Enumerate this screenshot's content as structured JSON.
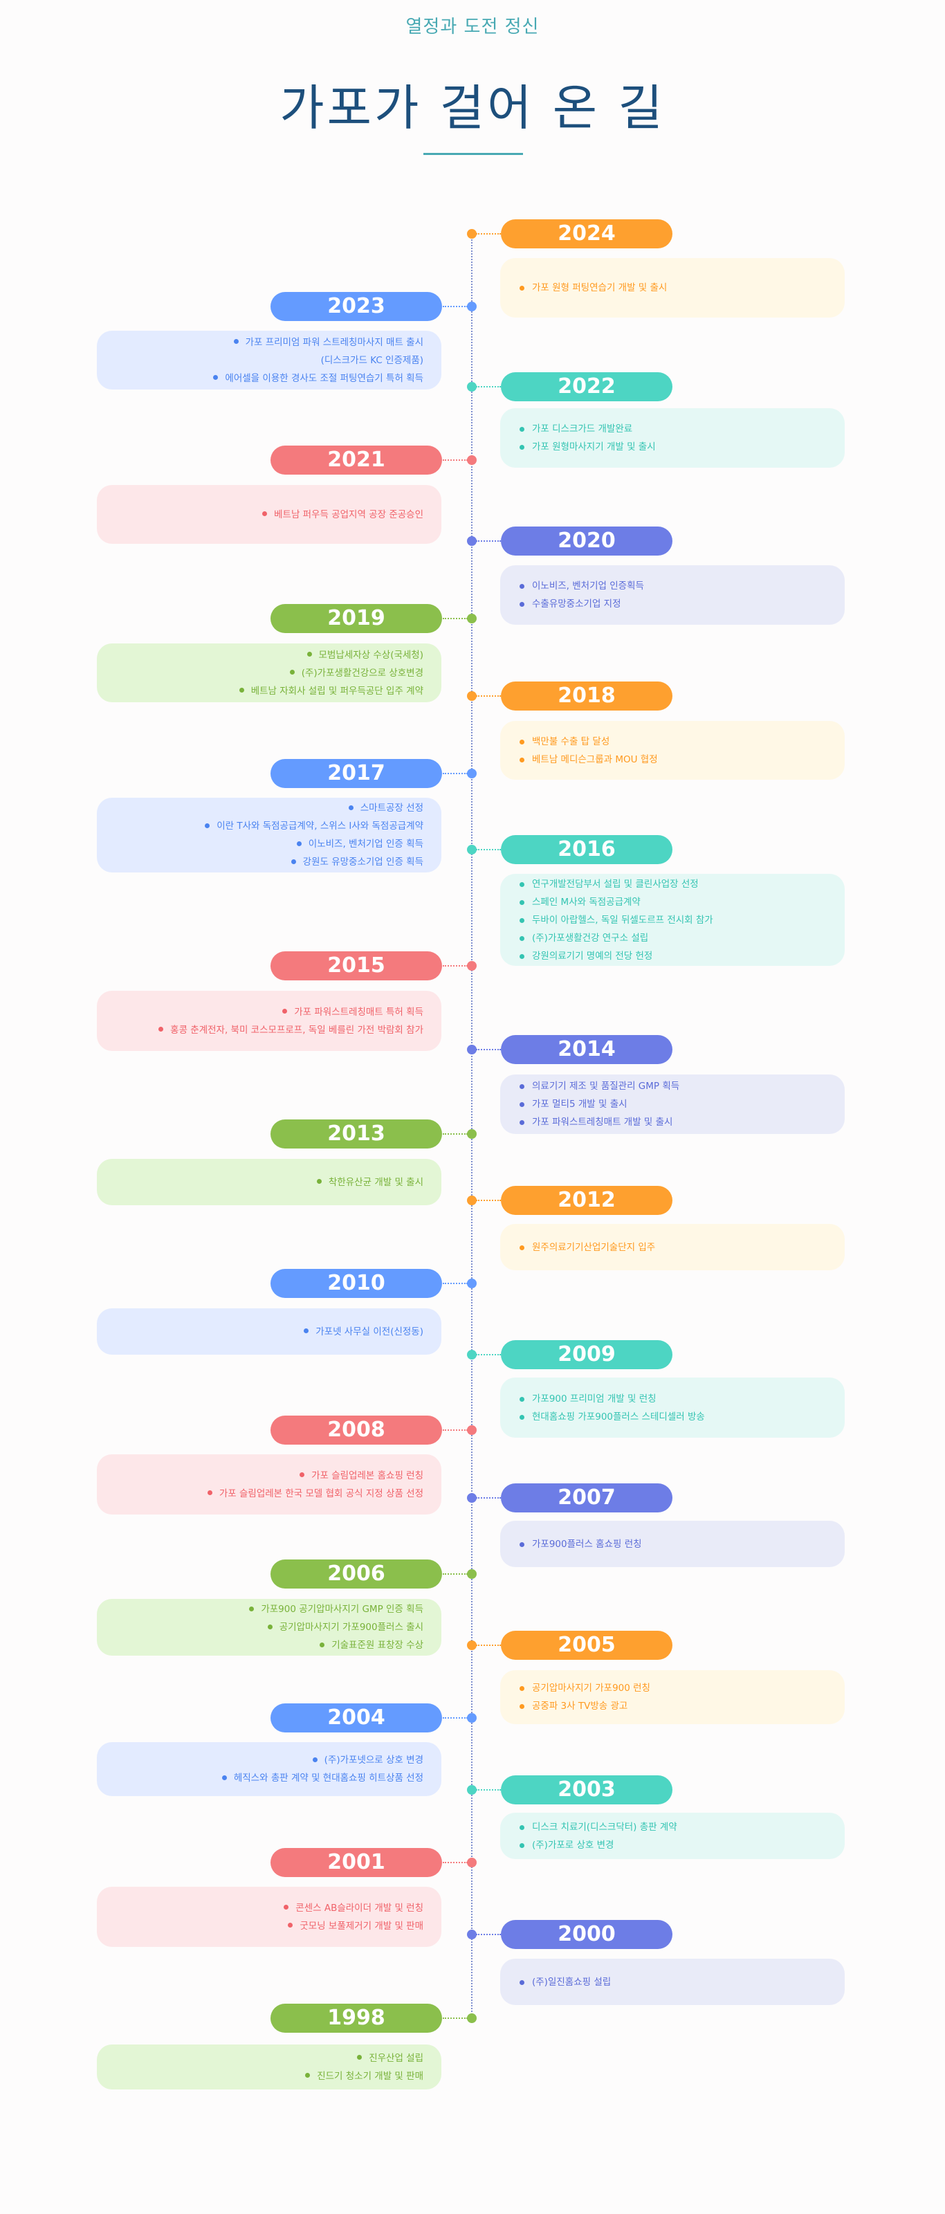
{
  "header": {
    "subtitle": "열정과 도전 정신",
    "title": "가포가 걸어 온 길"
  },
  "colors": {
    "orange": "#fea02f",
    "teal": "#4dd5c3",
    "indigo": "#6d7de6",
    "blue": "#649bff",
    "red": "#f47a7d",
    "green": "#8bbf4c",
    "title": "#1d4f7c",
    "subtitle": "#48a9b3"
  },
  "timeline": [
    {
      "year": "2024",
      "side": "right",
      "color": "orange",
      "items": [
        "가포 원형 퍼팅연습기 개발 및 출시"
      ]
    },
    {
      "year": "2023",
      "side": "left",
      "color": "blue",
      "items": [
        "가포 프리미엄 파워 스트레칭마사지 매트 출시\n(디스크가드 KC 인증제품)",
        "에어셀을 이용한 경사도 조절 퍼팅연습기 특허 획득"
      ]
    },
    {
      "year": "2022",
      "side": "right",
      "color": "teal",
      "items": [
        "가포 디스크가드 개발완료",
        "가포 원형마사지기 개발 및 출시"
      ]
    },
    {
      "year": "2021",
      "side": "left",
      "color": "red",
      "items": [
        "베트남 퍼우득 공업지역 공장 준공승인"
      ]
    },
    {
      "year": "2020",
      "side": "right",
      "color": "indigo",
      "items": [
        "이노비즈, 벤처기업 인증획득",
        "수출유망중소기업 지정"
      ]
    },
    {
      "year": "2019",
      "side": "left",
      "color": "green",
      "items": [
        "모범납세자상 수상(국세청)",
        "(주)가포생활건강으로 상호변경",
        "베트남 자회사 설립 및 퍼우득공단 입주 계약"
      ]
    },
    {
      "year": "2018",
      "side": "right",
      "color": "orange",
      "items": [
        "백만불 수출 탑 달성",
        "베트남 메디슨그룹과 MOU 협정"
      ]
    },
    {
      "year": "2017",
      "side": "left",
      "color": "blue",
      "items": [
        "스마트공장 선정",
        "이란 T사와 독점공급계약, 스위스 I사와 독점공급계약",
        "이노비즈, 벤처기업 인증 획득",
        "강원도 유망중소기업 인증 획득"
      ]
    },
    {
      "year": "2016",
      "side": "right",
      "color": "teal",
      "items": [
        "연구개발전담부서 설립 및 클린사업장 선정",
        "스페인 M사와 독점공급계약",
        "두바이 아랍헬스, 독일 뒤셀도르프 전시회 참가",
        "(주)가포생활건강 연구소 설립",
        "강원의료기기 명예의 전당 헌정"
      ]
    },
    {
      "year": "2015",
      "side": "left",
      "color": "red",
      "items": [
        "가포 파워스트레칭매트 특허 획득",
        "홍콩 춘계전자, 북미 코스모프로프, 독일 베를린 가전 박람회 참가"
      ]
    },
    {
      "year": "2014",
      "side": "right",
      "color": "indigo",
      "items": [
        "의료기기 제조 및 품질관리 GMP 획득",
        "가포 멀티5 개발 및 출시",
        "가포 파워스트레칭매트 개발 및 출시"
      ]
    },
    {
      "year": "2013",
      "side": "left",
      "color": "green",
      "items": [
        "착한유산균 개발 및 출시"
      ]
    },
    {
      "year": "2012",
      "side": "right",
      "color": "orange",
      "items": [
        "원주의료기기산업기술단지 입주"
      ]
    },
    {
      "year": "2010",
      "side": "left",
      "color": "blue",
      "items": [
        "가포넷 사무실 이전(신정동)"
      ]
    },
    {
      "year": "2009",
      "side": "right",
      "color": "teal",
      "items": [
        "가포900 프리미엄 개발 및 런칭",
        "현대홈쇼핑 가포900플러스 스테디셀러 방송"
      ]
    },
    {
      "year": "2008",
      "side": "left",
      "color": "red",
      "items": [
        "가포 슬림업레본 홈쇼핑 런칭",
        "가포 슬림업레본 한국 모델 협회 공식 지정 상품 선정"
      ]
    },
    {
      "year": "2007",
      "side": "right",
      "color": "indigo",
      "items": [
        "가포900플러스 홈쇼핑 런칭"
      ]
    },
    {
      "year": "2006",
      "side": "left",
      "color": "green",
      "items": [
        "가포900 공기압마사지기 GMP 인증 획득",
        "공기압마사지기 가포900플러스 출시",
        "기술표준원 표창장 수상"
      ]
    },
    {
      "year": "2005",
      "side": "right",
      "color": "orange",
      "items": [
        "공기압마사지기 가포900 런칭",
        "공중파 3사 TV방송 광고"
      ]
    },
    {
      "year": "2004",
      "side": "left",
      "color": "blue",
      "items": [
        "(주)가포넷으로 상호 변경",
        "헤직스와 총판 계약 및 현대홈쇼핑 히트상품 선정"
      ]
    },
    {
      "year": "2003",
      "side": "right",
      "color": "teal",
      "items": [
        "디스크 치료기(디스크닥터) 총판 계약",
        "(주)가포로 상호 변경"
      ]
    },
    {
      "year": "2001",
      "side": "left",
      "color": "red",
      "items": [
        "콘센스 AB슬라이더 개발 및 런칭",
        "굿모닝 보풀제거기 개발 및 판매"
      ]
    },
    {
      "year": "2000",
      "side": "right",
      "color": "indigo",
      "items": [
        "(주)일진홈쇼핑 설립"
      ]
    },
    {
      "year": "1998",
      "side": "left",
      "color": "green",
      "items": [
        "진우산업 설립",
        "진드기 청소기 개발 및 판매"
      ]
    }
  ]
}
